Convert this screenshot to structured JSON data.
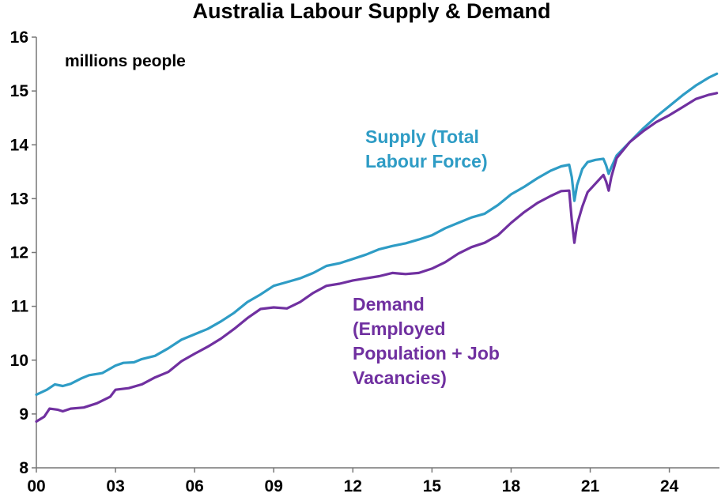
{
  "chart_data": {
    "type": "line",
    "title": "Australia Labour Supply & Demand",
    "unit_note": "millions people",
    "xlabel": "",
    "ylabel": "",
    "xlim": [
      2000,
      2025.9
    ],
    "ylim": [
      8,
      16
    ],
    "grid": false,
    "y_ticks": [
      8,
      9,
      10,
      11,
      12,
      13,
      14,
      15,
      16
    ],
    "x_ticks": [
      {
        "value": 2000,
        "label": "00"
      },
      {
        "value": 2003,
        "label": "03"
      },
      {
        "value": 2006,
        "label": "06"
      },
      {
        "value": 2009,
        "label": "09"
      },
      {
        "value": 2012,
        "label": "12"
      },
      {
        "value": 2015,
        "label": "15"
      },
      {
        "value": 2018,
        "label": "18"
      },
      {
        "value": 2021,
        "label": "21"
      },
      {
        "value": 2024,
        "label": "24"
      }
    ],
    "series": [
      {
        "name": "Supply (Total Labour Force)",
        "label_lines": [
          "Supply (Total",
          "Labour Force)"
        ],
        "color": "#2e9cc5",
        "points": [
          [
            2000.0,
            9.36
          ],
          [
            2000.4,
            9.45
          ],
          [
            2000.7,
            9.55
          ],
          [
            2001.0,
            9.52
          ],
          [
            2001.3,
            9.56
          ],
          [
            2001.7,
            9.66
          ],
          [
            2002.0,
            9.72
          ],
          [
            2002.5,
            9.76
          ],
          [
            2003.0,
            9.9
          ],
          [
            2003.3,
            9.95
          ],
          [
            2003.7,
            9.96
          ],
          [
            2004.0,
            10.02
          ],
          [
            2004.5,
            10.08
          ],
          [
            2005.0,
            10.22
          ],
          [
            2005.5,
            10.38
          ],
          [
            2006.0,
            10.48
          ],
          [
            2006.5,
            10.58
          ],
          [
            2007.0,
            10.72
          ],
          [
            2007.5,
            10.88
          ],
          [
            2008.0,
            11.08
          ],
          [
            2008.5,
            11.22
          ],
          [
            2009.0,
            11.38
          ],
          [
            2009.5,
            11.45
          ],
          [
            2010.0,
            11.52
          ],
          [
            2010.5,
            11.62
          ],
          [
            2011.0,
            11.75
          ],
          [
            2011.5,
            11.8
          ],
          [
            2012.0,
            11.88
          ],
          [
            2012.5,
            11.96
          ],
          [
            2013.0,
            12.06
          ],
          [
            2013.5,
            12.12
          ],
          [
            2014.0,
            12.17
          ],
          [
            2014.5,
            12.24
          ],
          [
            2015.0,
            12.32
          ],
          [
            2015.5,
            12.45
          ],
          [
            2016.0,
            12.55
          ],
          [
            2016.5,
            12.65
          ],
          [
            2017.0,
            12.72
          ],
          [
            2017.5,
            12.88
          ],
          [
            2018.0,
            13.08
          ],
          [
            2018.5,
            13.22
          ],
          [
            2019.0,
            13.38
          ],
          [
            2019.5,
            13.52
          ],
          [
            2019.9,
            13.6
          ],
          [
            2020.2,
            13.63
          ],
          [
            2020.3,
            13.4
          ],
          [
            2020.4,
            12.96
          ],
          [
            2020.5,
            13.25
          ],
          [
            2020.7,
            13.55
          ],
          [
            2020.9,
            13.68
          ],
          [
            2021.2,
            13.72
          ],
          [
            2021.5,
            13.74
          ],
          [
            2021.6,
            13.62
          ],
          [
            2021.7,
            13.46
          ],
          [
            2021.8,
            13.58
          ],
          [
            2022.0,
            13.8
          ],
          [
            2022.5,
            14.05
          ],
          [
            2023.0,
            14.3
          ],
          [
            2023.5,
            14.52
          ],
          [
            2024.0,
            14.72
          ],
          [
            2024.5,
            14.92
          ],
          [
            2025.0,
            15.1
          ],
          [
            2025.5,
            15.25
          ],
          [
            2025.8,
            15.32
          ]
        ]
      },
      {
        "name": "Demand (Employed Population + Job Vacancies)",
        "label_lines": [
          "Demand",
          "(Employed",
          "Population + Job",
          "Vacancies)"
        ],
        "color": "#7030a0",
        "points": [
          [
            2000.0,
            8.86
          ],
          [
            2000.3,
            8.95
          ],
          [
            2000.5,
            9.1
          ],
          [
            2000.8,
            9.08
          ],
          [
            2001.0,
            9.05
          ],
          [
            2001.3,
            9.1
          ],
          [
            2001.8,
            9.12
          ],
          [
            2002.3,
            9.2
          ],
          [
            2002.8,
            9.32
          ],
          [
            2003.0,
            9.45
          ],
          [
            2003.5,
            9.48
          ],
          [
            2004.0,
            9.55
          ],
          [
            2004.5,
            9.68
          ],
          [
            2005.0,
            9.78
          ],
          [
            2005.5,
            9.98
          ],
          [
            2006.0,
            10.12
          ],
          [
            2006.5,
            10.25
          ],
          [
            2007.0,
            10.4
          ],
          [
            2007.5,
            10.58
          ],
          [
            2008.0,
            10.78
          ],
          [
            2008.5,
            10.95
          ],
          [
            2009.0,
            10.98
          ],
          [
            2009.5,
            10.96
          ],
          [
            2010.0,
            11.08
          ],
          [
            2010.5,
            11.25
          ],
          [
            2011.0,
            11.38
          ],
          [
            2011.5,
            11.42
          ],
          [
            2012.0,
            11.48
          ],
          [
            2012.5,
            11.52
          ],
          [
            2013.0,
            11.56
          ],
          [
            2013.5,
            11.62
          ],
          [
            2014.0,
            11.6
          ],
          [
            2014.5,
            11.62
          ],
          [
            2015.0,
            11.7
          ],
          [
            2015.5,
            11.82
          ],
          [
            2016.0,
            11.98
          ],
          [
            2016.5,
            12.1
          ],
          [
            2017.0,
            12.18
          ],
          [
            2017.5,
            12.32
          ],
          [
            2018.0,
            12.55
          ],
          [
            2018.5,
            12.75
          ],
          [
            2019.0,
            12.92
          ],
          [
            2019.5,
            13.05
          ],
          [
            2019.9,
            13.14
          ],
          [
            2020.2,
            13.15
          ],
          [
            2020.3,
            12.6
          ],
          [
            2020.4,
            12.18
          ],
          [
            2020.5,
            12.52
          ],
          [
            2020.7,
            12.85
          ],
          [
            2020.9,
            13.12
          ],
          [
            2021.2,
            13.28
          ],
          [
            2021.5,
            13.44
          ],
          [
            2021.6,
            13.32
          ],
          [
            2021.7,
            13.15
          ],
          [
            2021.8,
            13.4
          ],
          [
            2022.0,
            13.75
          ],
          [
            2022.5,
            14.05
          ],
          [
            2023.0,
            14.25
          ],
          [
            2023.5,
            14.42
          ],
          [
            2024.0,
            14.55
          ],
          [
            2024.5,
            14.7
          ],
          [
            2025.0,
            14.85
          ],
          [
            2025.5,
            14.93
          ],
          [
            2025.8,
            14.96
          ]
        ]
      }
    ]
  }
}
